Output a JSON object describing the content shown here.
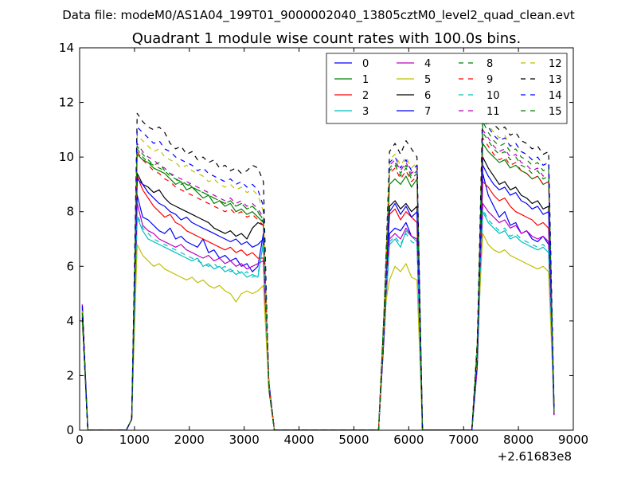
{
  "chart_data": {
    "type": "line",
    "suptitle": "Data file: modeM0/AS1A04_199T01_9000002040_13805cztM0_level2_quad_clean.evt",
    "title": "Quadrant 1 module wise count rates with 100.0s bins.",
    "xlabel": "",
    "ylabel": "",
    "x_offset_label": "+2.61683e8",
    "xlim": [
      0,
      9000
    ],
    "ylim": [
      0,
      14
    ],
    "x_ticks": [
      0,
      1000,
      2000,
      3000,
      4000,
      5000,
      6000,
      7000,
      8000,
      9000
    ],
    "y_ticks": [
      0,
      2,
      4,
      6,
      8,
      10,
      12,
      14
    ],
    "x_tick_labels": [
      "0",
      "1000",
      "2000",
      "3000",
      "4000",
      "5000",
      "6000",
      "7000",
      "8000",
      "9000"
    ],
    "y_tick_labels": [
      "0",
      "2",
      "4",
      "6",
      "8",
      "10",
      "12",
      "14"
    ],
    "grid": false,
    "legend": {
      "position": "top-right",
      "columns": 4
    },
    "x_segments": [
      {
        "start": 1050,
        "end": 3350,
        "step": 100
      },
      {
        "start": 5650,
        "end": 6150,
        "step": 100
      },
      {
        "start": 7350,
        "end": 8550,
        "step": 100
      }
    ],
    "series": [
      {
        "name": "0",
        "color": "#0000ff",
        "dashed": false,
        "segments": [
          [
            8.6,
            7.8,
            7.7,
            7.5,
            7.3,
            7.2,
            7.4,
            7.0,
            7.1,
            6.9,
            6.8,
            6.7,
            7.0,
            6.5,
            6.6,
            6.3,
            6.4,
            6.2,
            6.3,
            6.0,
            6.1,
            5.8,
            6.0,
            7.2
          ],
          [
            7.2,
            7.4,
            7.3,
            7.6,
            7.1,
            7.0
          ],
          [
            9.4,
            8.6,
            8.2,
            7.8,
            8.0,
            7.5,
            7.6,
            7.2,
            7.3,
            7.0,
            6.9,
            7.1,
            6.8
          ]
        ]
      },
      {
        "name": "1",
        "color": "#008000",
        "dashed": false,
        "segments": [
          [
            10.1,
            9.9,
            9.8,
            9.6,
            9.5,
            9.4,
            9.2,
            9.0,
            9.1,
            8.8,
            8.9,
            8.7,
            8.5,
            8.6,
            8.3,
            8.4,
            8.2,
            8.3,
            8.0,
            8.1,
            7.9,
            8.0,
            7.8,
            7.6
          ],
          [
            9.0,
            9.2,
            9.0,
            9.3,
            8.9,
            9.2
          ],
          [
            10.5,
            10.2,
            10.0,
            9.8,
            9.9,
            9.6,
            9.7,
            9.5,
            9.4,
            9.2,
            9.3,
            9.0,
            9.1
          ]
        ]
      },
      {
        "name": "2",
        "color": "#ff0000",
        "dashed": false,
        "segments": [
          [
            9.3,
            8.8,
            8.5,
            8.2,
            8.0,
            7.8,
            7.9,
            7.6,
            7.5,
            7.3,
            7.2,
            7.1,
            7.0,
            6.9,
            6.8,
            6.7,
            6.6,
            6.7,
            6.5,
            6.6,
            6.4,
            6.5,
            6.3,
            6.3
          ],
          [
            7.9,
            8.1,
            7.7,
            8.0,
            7.8,
            7.6
          ],
          [
            9.1,
            8.9,
            8.6,
            8.4,
            8.5,
            8.2,
            8.0,
            7.9,
            7.8,
            7.7,
            7.5,
            7.6,
            7.4
          ]
        ]
      },
      {
        "name": "3",
        "color": "#00bfbf",
        "dashed": false,
        "segments": [
          [
            7.8,
            7.3,
            7.0,
            6.9,
            6.8,
            6.7,
            6.6,
            6.5,
            6.4,
            6.3,
            6.2,
            6.3,
            6.0,
            6.1,
            5.9,
            6.0,
            5.8,
            5.9,
            5.7,
            5.8,
            5.6,
            5.7,
            5.6,
            6.9
          ],
          [
            6.8,
            7.0,
            6.7,
            7.3,
            7.1,
            6.9
          ],
          [
            8.0,
            7.6,
            7.4,
            7.2,
            7.3,
            7.0,
            7.1,
            6.9,
            6.8,
            6.7,
            6.6,
            6.7,
            6.5
          ]
        ]
      },
      {
        "name": "4",
        "color": "#bf00bf",
        "dashed": false,
        "segments": [
          [
            8.3,
            7.5,
            7.3,
            7.2,
            7.0,
            6.9,
            6.8,
            6.7,
            6.8,
            6.6,
            6.5,
            6.4,
            6.3,
            6.4,
            6.2,
            6.3,
            6.1,
            6.2,
            6.0,
            6.1,
            5.9,
            6.0,
            6.1,
            6.2
          ],
          [
            7.0,
            7.2,
            7.0,
            7.4,
            7.1,
            7.0
          ],
          [
            8.3,
            8.0,
            7.8,
            7.6,
            7.7,
            7.4,
            7.5,
            7.2,
            7.3,
            7.1,
            7.0,
            7.1,
            6.9
          ]
        ]
      },
      {
        "name": "5",
        "color": "#bfbf00",
        "dashed": false,
        "segments": [
          [
            6.8,
            6.4,
            6.2,
            6.0,
            6.1,
            5.9,
            5.8,
            5.7,
            5.6,
            5.5,
            5.6,
            5.4,
            5.5,
            5.3,
            5.2,
            5.3,
            5.1,
            5.0,
            4.7,
            5.0,
            5.1,
            5.0,
            5.1,
            5.3
          ],
          [
            5.5,
            6.0,
            5.8,
            6.1,
            5.6,
            5.5
          ],
          [
            7.2,
            6.8,
            6.6,
            6.5,
            6.6,
            6.4,
            6.3,
            6.2,
            6.1,
            6.0,
            5.9,
            6.0,
            5.8
          ]
        ]
      },
      {
        "name": "6",
        "color": "#000000",
        "dashed": false,
        "segments": [
          [
            9.4,
            9.0,
            8.9,
            8.7,
            8.8,
            8.5,
            8.3,
            8.2,
            8.1,
            8.0,
            7.9,
            7.8,
            7.7,
            7.6,
            7.4,
            7.3,
            7.2,
            7.3,
            7.1,
            7.2,
            7.0,
            7.4,
            7.6,
            7.5
          ],
          [
            8.2,
            8.4,
            8.1,
            8.3,
            8.0,
            8.2
          ],
          [
            10.0,
            9.6,
            9.3,
            9.0,
            9.1,
            8.8,
            8.9,
            8.6,
            8.5,
            8.3,
            8.4,
            8.1,
            8.2
          ]
        ]
      },
      {
        "name": "7",
        "color": "#0000ff",
        "dashed": false,
        "segments": [
          [
            9.2,
            9.0,
            8.7,
            8.5,
            8.3,
            8.2,
            8.0,
            7.9,
            7.7,
            7.8,
            7.6,
            7.5,
            7.4,
            7.3,
            7.2,
            7.1,
            7.0,
            6.9,
            7.0,
            6.8,
            6.9,
            6.7,
            6.8,
            7.0
          ],
          [
            8.0,
            8.3,
            7.9,
            8.2,
            7.8,
            8.0
          ],
          [
            9.7,
            9.3,
            9.0,
            8.8,
            8.9,
            8.6,
            8.7,
            8.4,
            8.3,
            8.1,
            8.2,
            7.9,
            8.0
          ]
        ]
      },
      {
        "name": "8",
        "color": "#008000",
        "dashed": true,
        "segments": [
          [
            10.3,
            10.0,
            9.8,
            9.7,
            9.6,
            9.5,
            9.3,
            9.2,
            9.0,
            9.1,
            8.9,
            8.8,
            8.7,
            8.6,
            8.5,
            8.4,
            8.3,
            8.4,
            8.2,
            8.3,
            8.1,
            8.2,
            8.0,
            7.7
          ],
          [
            9.6,
            9.8,
            9.4,
            9.7,
            9.3,
            9.5
          ],
          [
            10.9,
            10.6,
            10.3,
            10.1,
            10.2,
            9.9,
            10.0,
            9.7,
            9.6,
            9.4,
            9.5,
            9.2,
            9.3
          ]
        ]
      },
      {
        "name": "9",
        "color": "#ff0000",
        "dashed": true,
        "segments": [
          [
            10.2,
            9.9,
            9.7,
            9.5,
            9.4,
            9.2,
            9.1,
            8.9,
            8.8,
            8.7,
            8.6,
            8.5,
            8.4,
            8.3,
            8.2,
            8.1,
            8.0,
            8.1,
            7.9,
            8.0,
            7.8,
            7.9,
            7.7,
            7.5
          ],
          [
            9.4,
            9.6,
            9.2,
            9.5,
            9.1,
            9.3
          ],
          [
            10.7,
            10.4,
            10.1,
            9.9,
            10.0,
            9.7,
            9.8,
            9.5,
            9.4,
            9.2,
            9.3,
            9.0,
            9.1
          ]
        ]
      },
      {
        "name": "10",
        "color": "#00bfbf",
        "dashed": true,
        "segments": [
          [
            7.9,
            7.4,
            7.2,
            7.0,
            6.9,
            6.8,
            6.7,
            6.6,
            6.5,
            6.4,
            6.3,
            6.2,
            6.1,
            6.0,
            6.1,
            5.9,
            6.0,
            5.8,
            5.9,
            5.7,
            5.8,
            5.6,
            5.7,
            6.8
          ],
          [
            6.9,
            7.1,
            6.8,
            7.2,
            6.9,
            6.8
          ],
          [
            8.1,
            7.7,
            7.5,
            7.3,
            7.4,
            7.1,
            7.2,
            7.0,
            6.9,
            6.8,
            6.7,
            6.8,
            6.6
          ]
        ]
      },
      {
        "name": "11",
        "color": "#bf00bf",
        "dashed": true,
        "segments": [
          [
            10.5,
            10.2,
            10.0,
            9.9,
            9.7,
            9.6,
            9.4,
            9.3,
            9.2,
            9.1,
            9.0,
            8.9,
            8.8,
            8.7,
            8.6,
            8.5,
            8.4,
            8.5,
            8.3,
            8.4,
            8.2,
            8.3,
            8.1,
            7.8
          ],
          [
            9.7,
            9.9,
            9.5,
            9.8,
            9.4,
            9.6
          ],
          [
            11.0,
            10.7,
            10.4,
            10.2,
            10.3,
            10.0,
            10.1,
            9.8,
            9.7,
            9.5,
            9.6,
            9.3,
            9.4
          ]
        ]
      },
      {
        "name": "12",
        "color": "#bfbf00",
        "dashed": true,
        "segments": [
          [
            10.8,
            10.6,
            10.4,
            10.2,
            10.3,
            10.0,
            9.9,
            9.8,
            9.6,
            9.7,
            9.5,
            9.4,
            9.3,
            9.1,
            9.2,
            9.0,
            8.9,
            9.0,
            8.8,
            8.9,
            8.7,
            8.8,
            8.6,
            8.0
          ],
          [
            9.9,
            10.1,
            9.7,
            10.0,
            9.6,
            9.8
          ],
          [
            12.5,
            11.2,
            10.9,
            10.7,
            10.8,
            10.4,
            10.5,
            10.2,
            10.1,
            9.9,
            10.0,
            9.7,
            9.8
          ]
        ]
      },
      {
        "name": "13",
        "color": "#000000",
        "dashed": true,
        "segments": [
          [
            11.6,
            11.3,
            11.1,
            11.0,
            11.1,
            10.9,
            10.5,
            10.3,
            10.4,
            10.1,
            10.2,
            9.9,
            10.0,
            9.8,
            9.9,
            9.6,
            9.7,
            9.5,
            9.6,
            9.4,
            9.5,
            9.7,
            9.6,
            9.1
          ],
          [
            10.2,
            10.5,
            10.1,
            10.6,
            10.3,
            10.0
          ],
          [
            11.8,
            11.5,
            11.2,
            11.0,
            11.1,
            10.8,
            10.9,
            10.6,
            10.5,
            10.3,
            10.4,
            10.1,
            10.2
          ]
        ]
      },
      {
        "name": "14",
        "color": "#0000ff",
        "dashed": true,
        "segments": [
          [
            11.1,
            10.9,
            10.7,
            10.5,
            10.6,
            10.3,
            10.2,
            10.0,
            9.9,
            9.8,
            9.7,
            9.5,
            9.6,
            9.4,
            9.3,
            9.2,
            9.1,
            9.2,
            9.0,
            9.1,
            8.9,
            9.0,
            8.8,
            8.2
          ],
          [
            9.8,
            10.0,
            9.6,
            9.9,
            9.5,
            9.7
          ],
          [
            11.4,
            11.1,
            10.8,
            10.6,
            10.7,
            10.4,
            10.5,
            10.2,
            10.1,
            9.9,
            10.0,
            9.7,
            9.8
          ]
        ]
      },
      {
        "name": "15",
        "color": "#008000",
        "dashed": true,
        "segments": [
          [
            10.4,
            10.1,
            9.9,
            9.7,
            9.8,
            9.5,
            9.4,
            9.2,
            9.1,
            9.0,
            8.9,
            8.8,
            8.7,
            8.6,
            8.5,
            8.4,
            8.3,
            8.4,
            8.2,
            8.3,
            8.1,
            8.2,
            8.0,
            7.6
          ],
          [
            9.5,
            9.7,
            9.3,
            9.6,
            9.2,
            9.4
          ],
          [
            11.3,
            10.9,
            10.6,
            10.4,
            10.5,
            10.2,
            10.3,
            10.0,
            9.9,
            9.7,
            9.8,
            9.5,
            9.6
          ]
        ]
      }
    ]
  }
}
